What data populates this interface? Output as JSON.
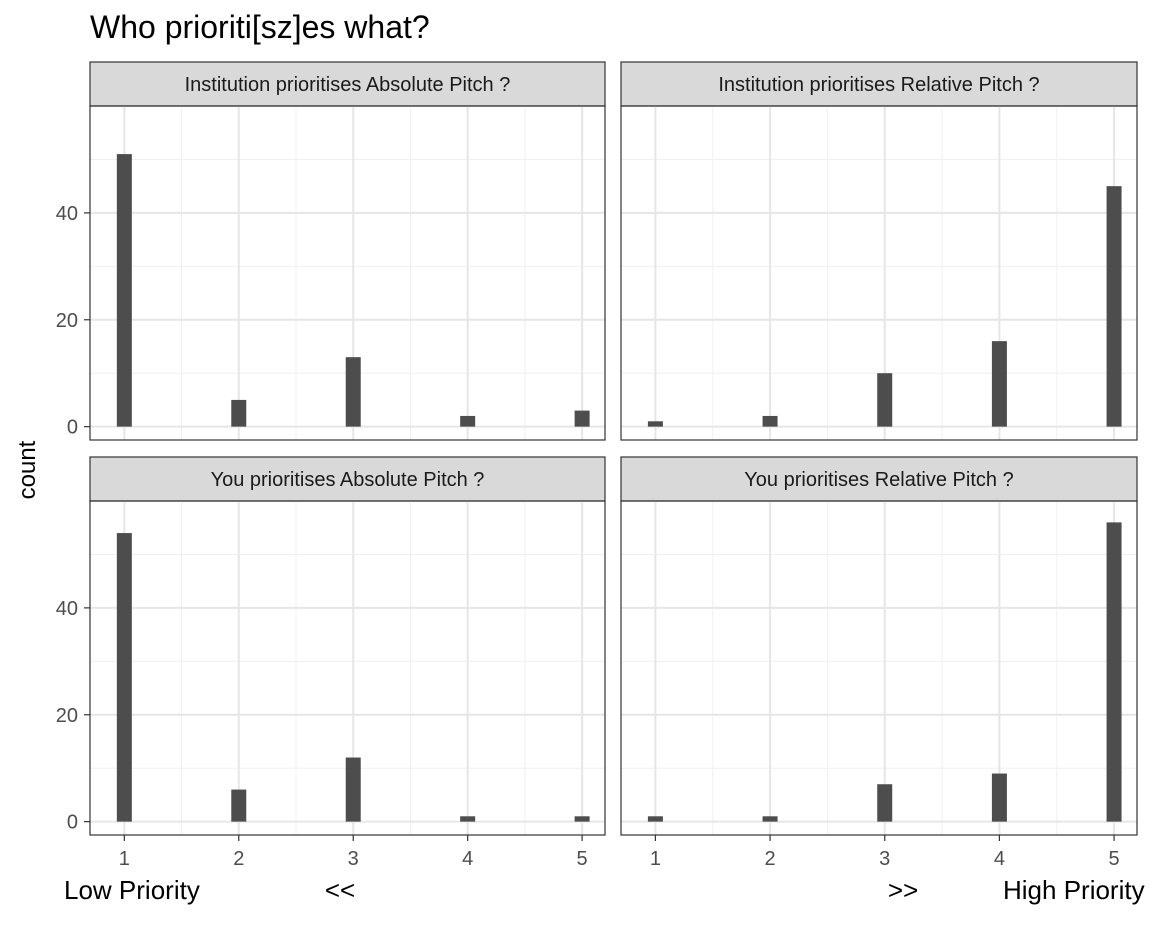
{
  "chart_data": {
    "type": "bar",
    "title": "Who prioriti[sz]es what?",
    "ylabel": "count",
    "x_ticks": [
      1,
      2,
      3,
      4,
      5
    ],
    "y_ticks": [
      0,
      20,
      40
    ],
    "ylim": [
      -2.5,
      60
    ],
    "xlim": [
      0.7,
      5.2
    ],
    "x_annotations": [
      "Low Priority",
      "<<",
      ">>",
      "High Priority"
    ],
    "grid": true,
    "bar_color": "#4d4d4d",
    "strip_color": "#d9d9d9",
    "facets": [
      {
        "label": "Institution prioritises Absolute Pitch ?",
        "x": [
          1,
          2,
          3,
          4,
          5
        ],
        "values": [
          51,
          5,
          13,
          2,
          3
        ]
      },
      {
        "label": "Institution prioritises Relative Pitch ?",
        "x": [
          1,
          2,
          3,
          4,
          5
        ],
        "values": [
          1,
          2,
          10,
          16,
          45
        ]
      },
      {
        "label": "You prioritises Absolute Pitch ?",
        "x": [
          1,
          2,
          3,
          4,
          5
        ],
        "values": [
          54,
          6,
          12,
          1,
          1
        ]
      },
      {
        "label": "You prioritises Relative Pitch ?",
        "x": [
          1,
          2,
          3,
          4,
          5
        ],
        "values": [
          1,
          1,
          7,
          9,
          56
        ]
      }
    ]
  }
}
